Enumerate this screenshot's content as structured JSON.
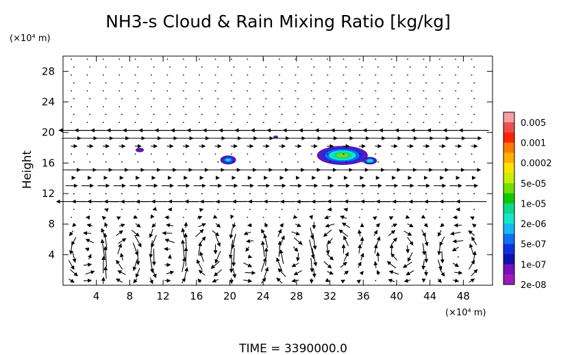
{
  "chart_data": {
    "type": "contour-vector",
    "title": "NH3-s Cloud & Rain Mixing Ratio [kg/kg]",
    "ylabel": "Height",
    "yunit": "(×10⁴ m)",
    "xunit": "(×10⁴ m)",
    "footer": "TIME = 3390000.0",
    "xlim": [
      0,
      51.5
    ],
    "ylim": [
      0,
      30
    ],
    "xticks": [
      "4",
      "8",
      "12",
      "16",
      "20",
      "24",
      "28",
      "32",
      "36",
      "40",
      "44",
      "48"
    ],
    "yticks": [
      "4",
      "8",
      "12",
      "16",
      "20",
      "24",
      "28"
    ],
    "xtick_values": [
      4,
      8,
      12,
      16,
      20,
      24,
      28,
      32,
      36,
      40,
      44,
      48
    ],
    "ytick_values": [
      4,
      8,
      12,
      16,
      20,
      24,
      28
    ],
    "colorbar": {
      "labels": [
        "0.005",
        "0.001",
        "0.0002",
        "5e-05",
        "1e-05",
        "2e-06",
        "5e-07",
        "1e-07",
        "2e-08"
      ],
      "colors": [
        "#f4a0a0",
        "#ee4e4e",
        "#ff2200",
        "#ff7a00",
        "#ffb000",
        "#ffe000",
        "#c8f000",
        "#70e000",
        "#10c800",
        "#10d890",
        "#10e8c8",
        "#18b8f0",
        "#1070f0",
        "#1030e0",
        "#1010b0",
        "#7810b8",
        "#a018b8"
      ]
    },
    "clouds": [
      {
        "x": 33.5,
        "y": 17.0,
        "rx": 3.0,
        "ry": 1.2,
        "max_level": 5
      },
      {
        "x": 36.8,
        "y": 16.3,
        "rx": 0.8,
        "ry": 0.45,
        "max_level": 4
      },
      {
        "x": 19.8,
        "y": 16.4,
        "rx": 0.9,
        "ry": 0.55,
        "max_level": 3
      },
      {
        "x": 9.2,
        "y": 17.7,
        "rx": 0.45,
        "ry": 0.25,
        "max_level": 0
      },
      {
        "x": 25.5,
        "y": 19.4,
        "rx": 0.25,
        "ry": 0.15,
        "max_level": 0
      }
    ],
    "jets": [
      {
        "y": 20.2,
        "u": -1.0
      },
      {
        "y": 18.9,
        "u": 1.0
      },
      {
        "y": 15.2,
        "u": 0.6
      },
      {
        "y": 13.3,
        "u": 0.5
      },
      {
        "y": 11.0,
        "u": -1.0
      }
    ],
    "eddies": [
      {
        "x": 3.0,
        "y": 4.0,
        "s": 1
      },
      {
        "x": 7.5,
        "y": 4.0,
        "s": -1
      },
      {
        "x": 12.5,
        "y": 4.0,
        "s": 1
      },
      {
        "x": 17.5,
        "y": 4.5,
        "s": -1
      },
      {
        "x": 22.5,
        "y": 4.0,
        "s": 1
      },
      {
        "x": 27.5,
        "y": 4.0,
        "s": -1
      },
      {
        "x": 32.5,
        "y": 5.0,
        "s": 1
      },
      {
        "x": 40.5,
        "y": 4.5,
        "s": -1
      },
      {
        "x": 47.5,
        "y": 4.0,
        "s": 1
      }
    ]
  }
}
